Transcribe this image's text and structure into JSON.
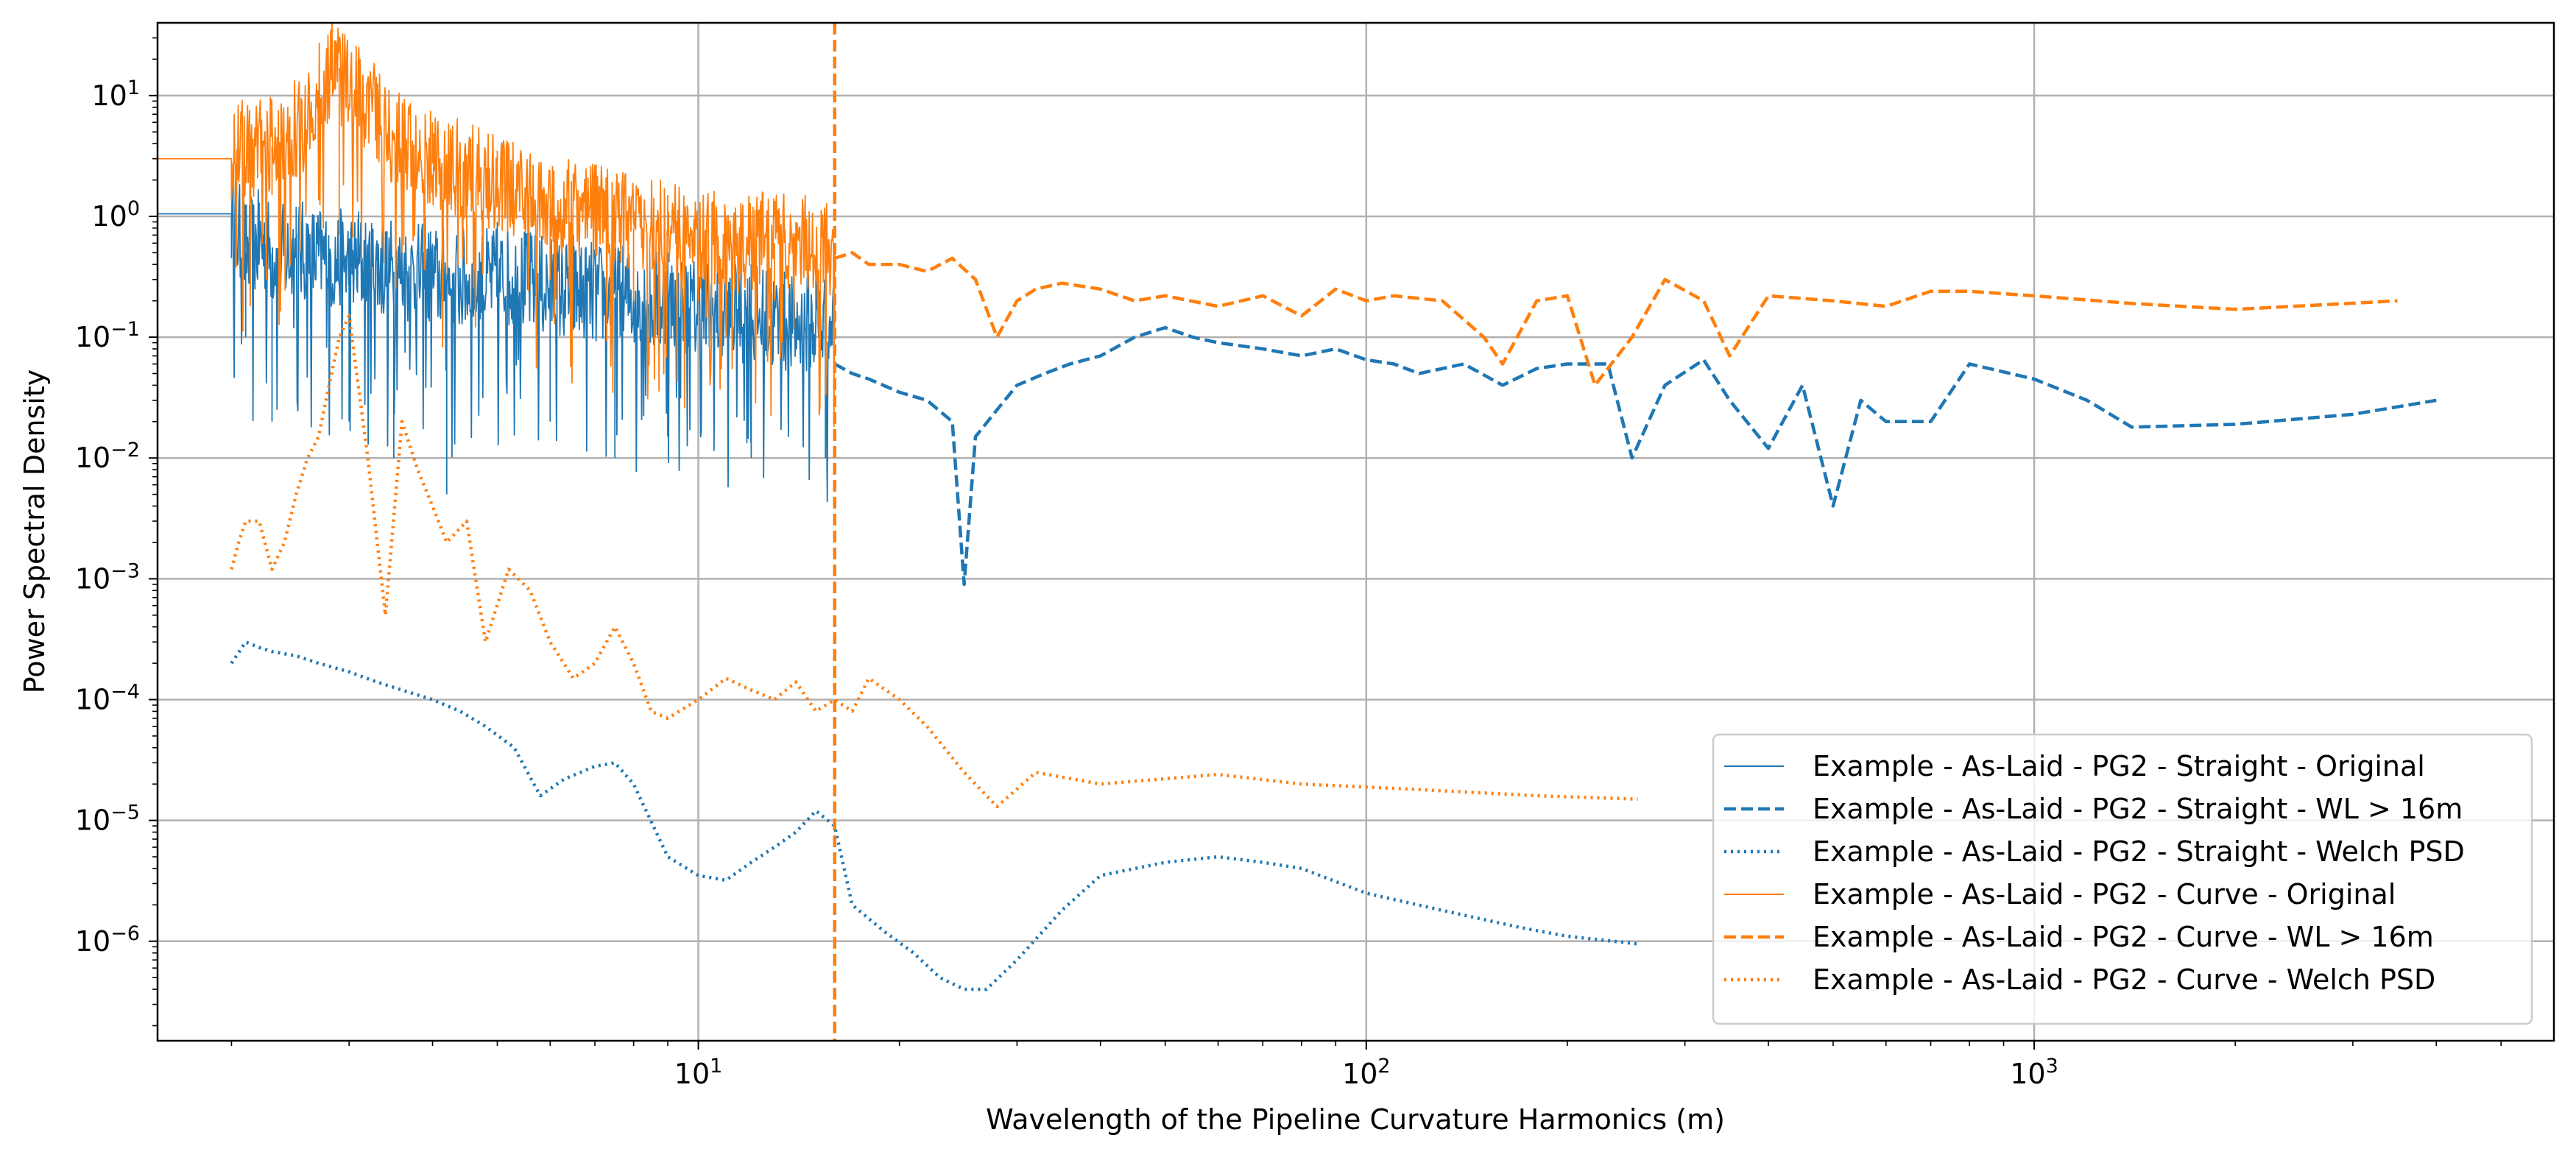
{
  "chart_data": {
    "type": "line",
    "xlabel": "Wavelength of the Pipeline Curvature Harmonics (m)",
    "ylabel": "Power Spectral Density",
    "xscale": "log",
    "yscale": "log",
    "xlim": [
      1.55,
      6000
    ],
    "ylim": [
      1.5e-07,
      40
    ],
    "grid": true,
    "legend_position": "lower-right",
    "x_major_ticks": [
      {
        "value": 10,
        "base": "10",
        "exp": "1"
      },
      {
        "value": 100,
        "base": "10",
        "exp": "2"
      },
      {
        "value": 1000,
        "base": "10",
        "exp": "3"
      }
    ],
    "y_major_ticks": [
      {
        "value": 10,
        "base": "10",
        "exp": "1"
      },
      {
        "value": 1,
        "base": "10",
        "exp": "0"
      },
      {
        "value": 0.1,
        "base": "10",
        "exp": "−1"
      },
      {
        "value": 0.01,
        "base": "10",
        "exp": "−2"
      },
      {
        "value": 0.001,
        "base": "10",
        "exp": "−3"
      },
      {
        "value": 0.0001,
        "base": "10",
        "exp": "−4"
      },
      {
        "value": 1e-05,
        "base": "10",
        "exp": "−5"
      },
      {
        "value": 1e-06,
        "base": "10",
        "exp": "−6"
      }
    ],
    "vline": {
      "x": 16,
      "color": "#ff7f0e",
      "style": "dashed"
    },
    "colors": {
      "straight": "#1f77b4",
      "curve": "#ff7f0e"
    },
    "series": [
      {
        "name": "Example - As-Laid - PG2 - Straight - Original",
        "color": "#1f77b4",
        "style": "solid",
        "x": [
          1.0,
          2.0,
          2.05,
          2.1,
          2.2,
          2.35,
          2.5,
          2.7,
          3.0,
          3.3,
          3.7,
          4.1,
          4.6,
          5.2,
          6.0,
          7.0,
          8.2,
          9.6,
          11.0,
          12.5,
          14.0,
          15.5,
          16.0
        ],
        "y": [
          1.05,
          1.05,
          0.7,
          0.5,
          0.6,
          0.45,
          0.5,
          0.45,
          0.4,
          0.38,
          0.32,
          0.3,
          0.28,
          0.3,
          0.25,
          0.22,
          0.2,
          0.17,
          0.15,
          0.14,
          0.12,
          0.13,
          0.12
        ],
        "noise_dips": [
          [
            2.1,
            0.1
          ],
          [
            2.3,
            0.02
          ],
          [
            2.8,
            0.03
          ],
          [
            3.0,
            0.02
          ],
          [
            3.5,
            0.01
          ],
          [
            4.2,
            0.005
          ],
          [
            6.0,
            0.02
          ],
          [
            7.5,
            0.01
          ],
          [
            9.0,
            0.015
          ],
          [
            12.0,
            0.01
          ],
          [
            15.5,
            0.01
          ]
        ],
        "noise_peaks": [
          [
            2.2,
            1.3
          ],
          [
            2.5,
            1.2
          ],
          [
            3.1,
            1.1
          ],
          [
            3.9,
            1.0
          ],
          [
            5.0,
            0.9
          ],
          [
            6.5,
            0.7
          ],
          [
            9.0,
            0.5
          ],
          [
            12.0,
            0.4
          ],
          [
            15.0,
            0.35
          ]
        ]
      },
      {
        "name": "Example - As-Laid - PG2 - Straight - WL > 16m",
        "color": "#1f77b4",
        "style": "dashed",
        "x": [
          16,
          17,
          18,
          20,
          22,
          24,
          25,
          26,
          28,
          30,
          33,
          36,
          40,
          45,
          50,
          55,
          60,
          70,
          80,
          90,
          100,
          110,
          120,
          140,
          160,
          180,
          200,
          230,
          250,
          280,
          320,
          350,
          400,
          450,
          500,
          550,
          600,
          700,
          800,
          1000,
          1200,
          1400,
          2000,
          3000,
          4000
        ],
        "y": [
          0.06,
          0.05,
          0.045,
          0.035,
          0.03,
          0.02,
          0.0009,
          0.015,
          0.025,
          0.04,
          0.05,
          0.06,
          0.07,
          0.1,
          0.12,
          0.1,
          0.09,
          0.08,
          0.07,
          0.08,
          0.065,
          0.06,
          0.05,
          0.06,
          0.04,
          0.055,
          0.06,
          0.06,
          0.01,
          0.04,
          0.065,
          0.03,
          0.012,
          0.04,
          0.004,
          0.03,
          0.02,
          0.02,
          0.06,
          0.045,
          0.03,
          0.018,
          0.019,
          0.023,
          0.03
        ]
      },
      {
        "name": "Example - As-Laid - PG2 - Straight - Welch PSD",
        "color": "#1f77b4",
        "style": "dotted",
        "x": [
          2.0,
          2.1,
          2.2,
          2.3,
          2.5,
          2.7,
          3.0,
          3.3,
          3.6,
          4.0,
          4.4,
          4.8,
          5.3,
          5.8,
          6.3,
          7.0,
          7.5,
          8.0,
          9.0,
          10.0,
          11.0,
          12.0,
          13.0,
          14.0,
          15.0,
          16.0,
          17.0,
          19.0,
          21.0,
          23.0,
          25.0,
          27.0,
          30.0,
          35.0,
          40.0,
          50.0,
          60.0,
          70.0,
          80.0,
          100.0,
          130.0,
          170.0,
          200.0,
          255.0
        ],
        "y": [
          0.0002,
          0.0003,
          0.00027,
          0.00025,
          0.00023,
          0.0002,
          0.00017,
          0.00014,
          0.00012,
          0.0001,
          8e-05,
          6e-05,
          4e-05,
          1.6e-05,
          2.2e-05,
          2.8e-05,
          3e-05,
          2e-05,
          5e-06,
          3.5e-06,
          3.2e-06,
          4.5e-06,
          6e-06,
          8e-06,
          1.2e-05,
          9e-06,
          2e-06,
          1.2e-06,
          8e-07,
          5e-07,
          4e-07,
          4e-07,
          7e-07,
          1.8e-06,
          3.5e-06,
          4.5e-06,
          5e-06,
          4.5e-06,
          4e-06,
          2.5e-06,
          1.8e-06,
          1.3e-06,
          1.1e-06,
          9.5e-07
        ]
      },
      {
        "name": "Example - As-Laid - PG2 - Curve - Original",
        "color": "#ff7f0e",
        "style": "solid",
        "x": [
          1.0,
          2.0,
          2.1,
          2.2,
          2.4,
          2.6,
          2.75,
          2.85,
          3.0,
          3.2,
          3.5,
          3.8,
          4.2,
          4.7,
          5.3,
          6.0,
          7.0,
          8.0,
          9.0,
          10.0,
          11.5,
          13.0,
          14.5,
          16.0
        ],
        "y": [
          3.0,
          3.0,
          3.5,
          3.5,
          4.0,
          6.0,
          12.0,
          17.0,
          10.0,
          8.0,
          4.0,
          3.0,
          2.5,
          2.0,
          1.5,
          1.2,
          1.0,
          0.8,
          0.7,
          0.6,
          0.55,
          0.6,
          0.55,
          0.5
        ],
        "noise_dips": [
          [
            2.3,
            1.5
          ],
          [
            2.9,
            0.7
          ],
          [
            3.6,
            0.5
          ],
          [
            4.5,
            0.4
          ],
          [
            6.0,
            0.3
          ],
          [
            8.0,
            0.2
          ],
          [
            10.0,
            0.2
          ],
          [
            13.0,
            0.2
          ],
          [
            15.5,
            0.15
          ]
        ],
        "noise_peaks": [
          [
            2.75,
            15.0
          ],
          [
            2.9,
            17.0
          ],
          [
            3.3,
            9.0
          ],
          [
            4.0,
            6.0
          ],
          [
            5.0,
            3.5
          ],
          [
            7.0,
            1.8
          ],
          [
            9.0,
            1.5
          ],
          [
            11.0,
            1.0
          ],
          [
            14.0,
            0.9
          ]
        ]
      },
      {
        "name": "Example - As-Laid - PG2 - Curve - WL > 16m",
        "color": "#ff7f0e",
        "style": "dashed",
        "x": [
          16,
          17,
          18,
          20,
          22,
          24,
          26,
          28,
          30,
          32,
          35,
          40,
          45,
          50,
          60,
          70,
          80,
          90,
          100,
          110,
          130,
          150,
          160,
          180,
          200,
          220,
          250,
          280,
          320,
          350,
          400,
          500,
          600,
          700,
          800,
          1000,
          1400,
          2000,
          3500
        ],
        "y": [
          0.45,
          0.5,
          0.4,
          0.4,
          0.35,
          0.45,
          0.3,
          0.1,
          0.2,
          0.25,
          0.28,
          0.25,
          0.2,
          0.22,
          0.18,
          0.22,
          0.15,
          0.25,
          0.2,
          0.22,
          0.2,
          0.1,
          0.06,
          0.2,
          0.22,
          0.04,
          0.1,
          0.3,
          0.2,
          0.07,
          0.22,
          0.2,
          0.18,
          0.24,
          0.24,
          0.22,
          0.19,
          0.17,
          0.2
        ]
      },
      {
        "name": "Example - As-Laid - PG2 - Curve - Welch PSD",
        "color": "#ff7f0e",
        "style": "dotted",
        "x": [
          2.0,
          2.05,
          2.1,
          2.2,
          2.3,
          2.4,
          2.5,
          2.6,
          2.7,
          2.8,
          2.9,
          3.0,
          3.2,
          3.4,
          3.6,
          3.8,
          4.0,
          4.2,
          4.5,
          4.8,
          5.2,
          5.6,
          6.0,
          6.5,
          7.0,
          7.5,
          8.0,
          8.5,
          9.0,
          10.0,
          11.0,
          12.0,
          13.0,
          14.0,
          15.0,
          16.0,
          17.0,
          18.0,
          20.0,
          22.0,
          25.0,
          28.0,
          32.0,
          40.0,
          60.0,
          80.0,
          120.0,
          180.0,
          255.0
        ],
        "y": [
          0.0012,
          0.002,
          0.003,
          0.003,
          0.0012,
          0.002,
          0.005,
          0.01,
          0.015,
          0.04,
          0.1,
          0.15,
          0.01,
          0.0005,
          0.02,
          0.008,
          0.004,
          0.002,
          0.003,
          0.0003,
          0.0012,
          0.0008,
          0.0003,
          0.00015,
          0.0002,
          0.0004,
          0.0002,
          8e-05,
          7e-05,
          0.0001,
          0.00015,
          0.00012,
          0.0001,
          0.00014,
          8e-05,
          0.0001,
          8e-05,
          0.00015,
          0.0001,
          6e-05,
          2.5e-05,
          1.3e-05,
          2.5e-05,
          2e-05,
          2.4e-05,
          2e-05,
          1.8e-05,
          1.6e-05,
          1.5e-05
        ]
      }
    ]
  }
}
